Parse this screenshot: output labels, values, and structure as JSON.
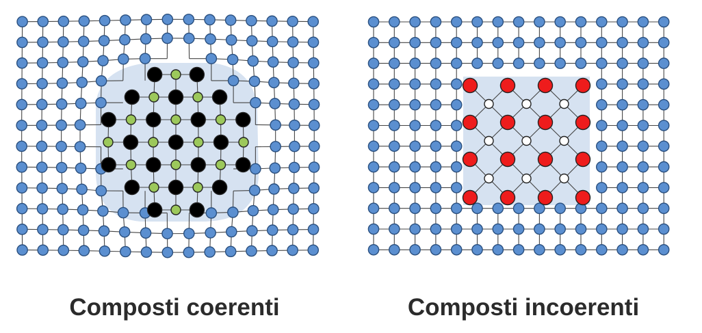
{
  "panels": [
    {
      "caption": "Composti coerenti"
    },
    {
      "caption": "Composti incoerenti"
    }
  ],
  "colors": {
    "host_atom": "#5b8fd0",
    "host_atom_stroke": "#2a4f7e",
    "precipitate_region": "#d6e2f1",
    "green_atom": "#9cc85b",
    "black_atom": "#000000",
    "red_atom": "#ee1c1c",
    "white_atom": "#ffffff",
    "bond": "#444444"
  },
  "legend": []
}
